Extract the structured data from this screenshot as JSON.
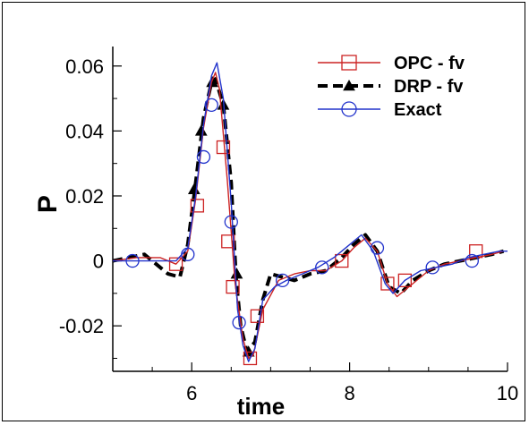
{
  "chart_data": {
    "type": "line",
    "xlabel": "time",
    "ylabel": "P",
    "xlim": [
      5,
      10
    ],
    "ylim": [
      -0.034,
      0.066
    ],
    "x_ticks": [
      "6",
      "8",
      "10"
    ],
    "y_ticks": [
      "0.06",
      "0.04",
      "0.02",
      "0",
      "-0.02"
    ],
    "legend_position": "top-right",
    "series": [
      {
        "name": "OPC - fv",
        "color": "#cc2222",
        "marker": "square",
        "line": "solid",
        "x": [
          5.0,
          5.3,
          5.6,
          5.8,
          5.95,
          6.05,
          6.15,
          6.25,
          6.3,
          6.35,
          6.45,
          6.55,
          6.65,
          6.72,
          6.78,
          6.9,
          7.1,
          7.3,
          7.5,
          7.7,
          7.9,
          8.05,
          8.2,
          8.35,
          8.48,
          8.6,
          8.8,
          9.0,
          9.2,
          9.4,
          9.6,
          9.8,
          9.95
        ],
        "y": [
          0.0,
          0.001,
          0.001,
          -0.001,
          0.003,
          0.019,
          0.041,
          0.055,
          0.058,
          0.053,
          0.025,
          -0.007,
          -0.024,
          -0.03,
          -0.029,
          -0.015,
          -0.006,
          -0.004,
          -0.003,
          -0.003,
          0.0,
          0.004,
          0.007,
          0.003,
          -0.007,
          -0.011,
          -0.007,
          -0.003,
          -0.001,
          0.0,
          0.001,
          0.002,
          0.003
        ],
        "markers_x": [
          5.8,
          6.07,
          6.4,
          6.46,
          6.52,
          6.74,
          6.83,
          7.9,
          8.48,
          8.7,
          9.6
        ],
        "markers_y": [
          -0.001,
          0.017,
          0.035,
          0.006,
          -0.008,
          -0.03,
          -0.017,
          0.0,
          -0.007,
          -0.006,
          0.003
        ]
      },
      {
        "name": "DRP - fv",
        "color": "#000000",
        "marker": "triangle",
        "line": "dashed",
        "x": [
          5.0,
          5.2,
          5.4,
          5.55,
          5.7,
          5.85,
          5.95,
          6.05,
          6.15,
          6.25,
          6.3,
          6.4,
          6.5,
          6.56,
          6.62,
          6.7,
          6.8,
          6.9,
          7.0,
          7.15,
          7.3,
          7.5,
          7.7,
          7.9,
          8.05,
          8.2,
          8.35,
          8.5,
          8.65,
          8.8,
          9.0,
          9.2,
          9.4,
          9.6,
          9.8,
          9.95
        ],
        "y": [
          0.0,
          0.001,
          0.002,
          -0.001,
          -0.004,
          -0.005,
          0.005,
          0.024,
          0.044,
          0.055,
          0.056,
          0.048,
          0.024,
          -0.005,
          -0.02,
          -0.028,
          -0.025,
          -0.012,
          -0.004,
          -0.005,
          -0.006,
          -0.004,
          -0.003,
          0.001,
          0.005,
          0.008,
          0.003,
          -0.008,
          -0.01,
          -0.006,
          -0.003,
          -0.001,
          0.0,
          0.001,
          0.002,
          0.003
        ],
        "markers_x": [
          6.03,
          6.12,
          6.26,
          6.4,
          6.57,
          6.72
        ],
        "markers_y": [
          0.022,
          0.04,
          0.055,
          0.048,
          -0.004,
          -0.028
        ]
      },
      {
        "name": "Exact",
        "color": "#2233cc",
        "marker": "circle",
        "line": "solid",
        "x": [
          5.0,
          5.2,
          5.5,
          5.8,
          5.95,
          6.05,
          6.15,
          6.25,
          6.32,
          6.4,
          6.5,
          6.58,
          6.65,
          6.72,
          6.8,
          6.9,
          7.05,
          7.2,
          7.4,
          7.6,
          7.8,
          8.0,
          8.15,
          8.3,
          8.45,
          8.55,
          8.7,
          8.9,
          9.1,
          9.3,
          9.5,
          9.7,
          9.9,
          10.0
        ],
        "y": [
          0.0,
          0.0,
          0.0,
          0.0,
          0.004,
          0.02,
          0.042,
          0.057,
          0.061,
          0.05,
          0.018,
          -0.015,
          -0.026,
          -0.031,
          -0.027,
          -0.012,
          -0.008,
          -0.006,
          -0.004,
          -0.002,
          0.001,
          0.005,
          0.008,
          0.003,
          -0.007,
          -0.01,
          -0.006,
          -0.003,
          -0.002,
          -0.001,
          0.001,
          0.002,
          0.003,
          0.003
        ],
        "markers_x": [
          5.25,
          5.95,
          6.15,
          6.25,
          6.5,
          6.6,
          7.15,
          7.65,
          8.35,
          9.05,
          9.55
        ],
        "markers_y": [
          0.0,
          0.002,
          0.032,
          0.048,
          0.012,
          -0.019,
          -0.006,
          -0.002,
          0.004,
          -0.002,
          0.0
        ]
      }
    ]
  }
}
